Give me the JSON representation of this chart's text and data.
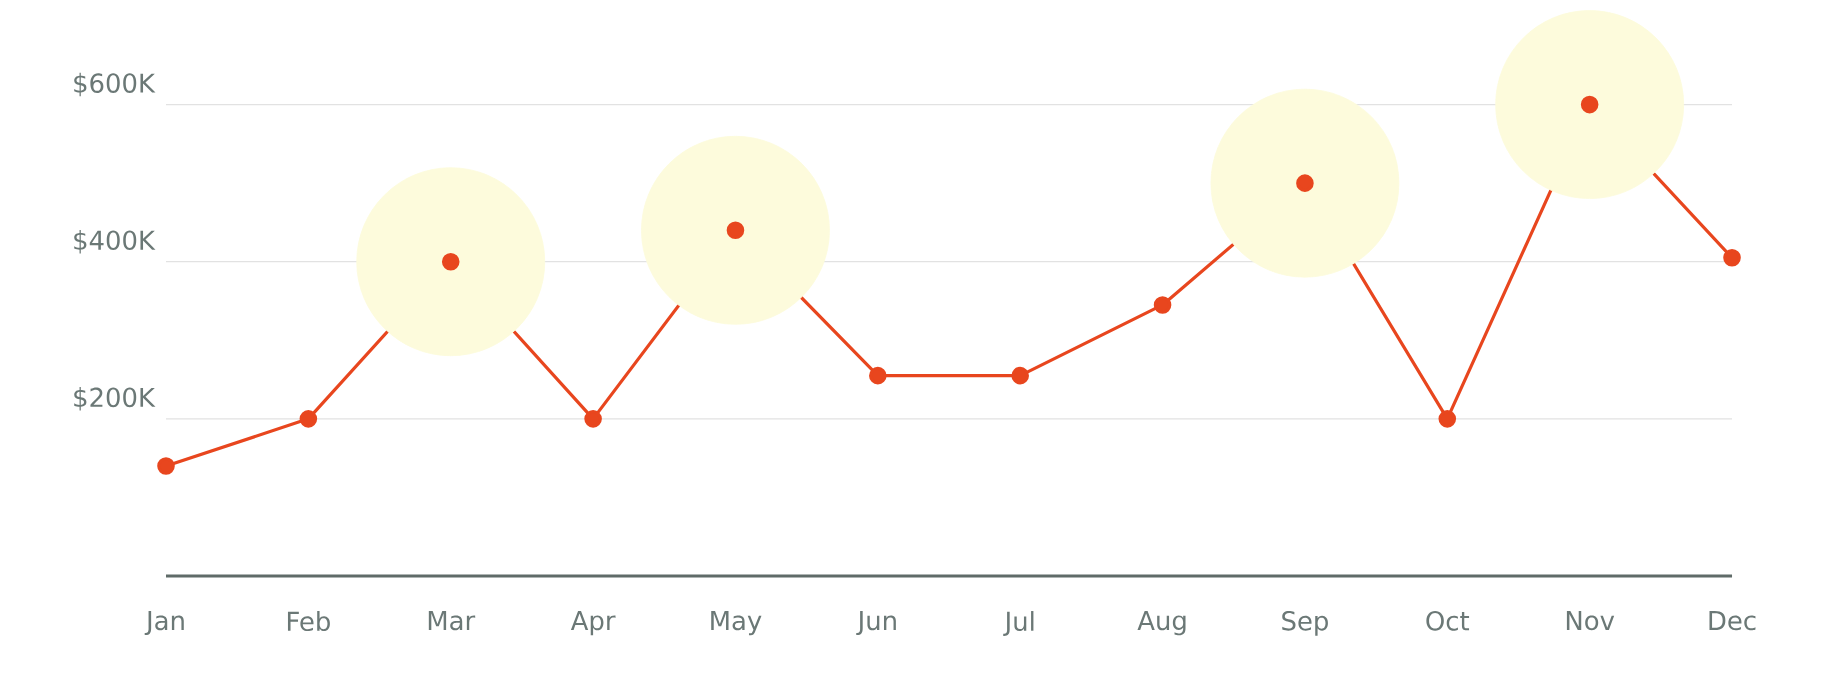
{
  "chart_data": {
    "type": "line",
    "categories": [
      "Jan",
      "Feb",
      "Mar",
      "Apr",
      "May",
      "Jun",
      "Jul",
      "Aug",
      "Sep",
      "Oct",
      "Nov",
      "Dec"
    ],
    "series": [
      {
        "type": "scatter",
        "color": "#fdfbdc",
        "values": [
          null,
          null,
          400,
          null,
          440,
          null,
          null,
          null,
          500,
          null,
          600,
          null
        ]
      },
      {
        "color": "#e8461e",
        "marker": "circle",
        "values": [
          140,
          200,
          400,
          200,
          440,
          255,
          255,
          345,
          500,
          200,
          600,
          405
        ]
      }
    ],
    "ylim": [
      0,
      600
    ],
    "yticks": [
      {
        "value": 200,
        "label": "$200K"
      },
      {
        "value": 400,
        "label": "$400K"
      },
      {
        "value": 600,
        "label": "$600K"
      }
    ],
    "grid": "y"
  }
}
